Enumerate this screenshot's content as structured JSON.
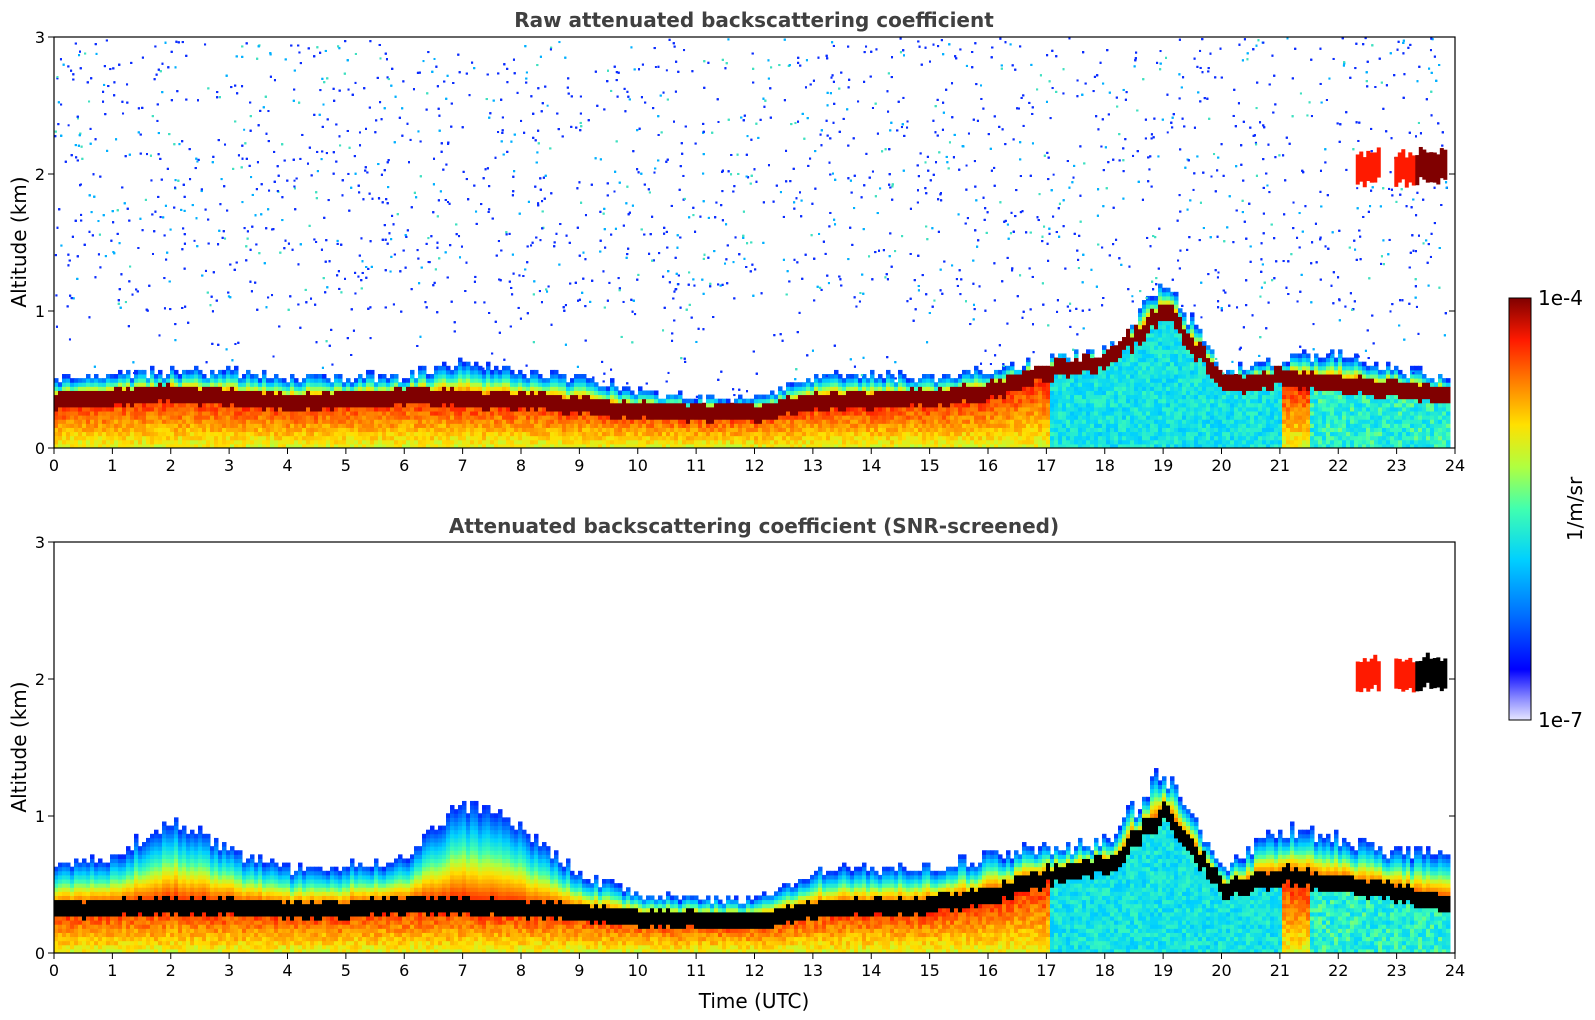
{
  "chart_data": [
    {
      "type": "heatmap",
      "title": "Raw attenuated backscattering coefficient",
      "xlabel": "",
      "ylabel": "Altitude (km)",
      "xlim": [
        0,
        24
      ],
      "ylim": [
        0,
        3
      ],
      "xticks": [
        "0",
        "1",
        "2",
        "3",
        "4",
        "5",
        "6",
        "7",
        "8",
        "9",
        "10",
        "11",
        "12",
        "13",
        "14",
        "15",
        "16",
        "17",
        "18",
        "19",
        "20",
        "21",
        "22",
        "23",
        "24"
      ],
      "yticks": [
        "0",
        "1",
        "2",
        "3"
      ],
      "layer_top_km": [
        0.48,
        0.52,
        0.55,
        0.55,
        0.5,
        0.5,
        0.52,
        0.6,
        0.55,
        0.5,
        0.4,
        0.35,
        0.35,
        0.5,
        0.52,
        0.5,
        0.55,
        0.62,
        0.7,
        1.2,
        0.55,
        0.62,
        0.68,
        0.55,
        0.5
      ],
      "layer_peak_km": [
        0.33,
        0.36,
        0.38,
        0.36,
        0.32,
        0.34,
        0.37,
        0.35,
        0.33,
        0.3,
        0.26,
        0.25,
        0.24,
        0.33,
        0.34,
        0.35,
        0.4,
        0.55,
        0.62,
        1.0,
        0.45,
        0.5,
        0.45,
        0.42,
        0.35
      ],
      "elevated_layer": {
        "time_start": 22.3,
        "time_end": 23.8,
        "altitude_km": 2.0
      },
      "noise": "high",
      "colorbar": {
        "min_label": "1e-7",
        "max_label": "1e-4",
        "units": "1/m/sr",
        "scale": "log"
      }
    },
    {
      "type": "heatmap",
      "title": "Attenuated backscattering coefficient (SNR-screened)",
      "xlabel": "Time (UTC)",
      "ylabel": "Altitude (km)",
      "xlim": [
        0,
        24
      ],
      "ylim": [
        0,
        3
      ],
      "xticks": [
        "0",
        "1",
        "2",
        "3",
        "4",
        "5",
        "6",
        "7",
        "8",
        "9",
        "10",
        "11",
        "12",
        "13",
        "14",
        "15",
        "16",
        "17",
        "18",
        "19",
        "20",
        "21",
        "22",
        "23",
        "24"
      ],
      "yticks": [
        "0",
        "1",
        "2",
        "3"
      ],
      "layer_top_km": [
        0.62,
        0.68,
        0.95,
        0.72,
        0.6,
        0.62,
        0.66,
        1.1,
        0.9,
        0.55,
        0.42,
        0.38,
        0.38,
        0.58,
        0.6,
        0.62,
        0.7,
        0.75,
        0.82,
        1.3,
        0.6,
        0.9,
        0.82,
        0.7,
        0.75
      ],
      "layer_peak_km": [
        0.3,
        0.32,
        0.34,
        0.33,
        0.3,
        0.31,
        0.34,
        0.33,
        0.31,
        0.28,
        0.24,
        0.23,
        0.22,
        0.31,
        0.32,
        0.34,
        0.4,
        0.55,
        0.62,
        1.0,
        0.45,
        0.55,
        0.5,
        0.42,
        0.33
      ],
      "elevated_layer": {
        "time_start": 22.3,
        "time_end": 23.8,
        "altitude_km": 2.0
      },
      "noise": "screened",
      "colorbar": {
        "min_label": "1e-7",
        "max_label": "1e-4",
        "units": "1/m/sr",
        "scale": "log"
      }
    }
  ],
  "colors": {
    "low_blue": "#0000ff",
    "cyan": "#00d0ff",
    "yellow": "#ffe000",
    "red": "#ff1a00",
    "dark_red": "#800000",
    "black": "#000000"
  }
}
